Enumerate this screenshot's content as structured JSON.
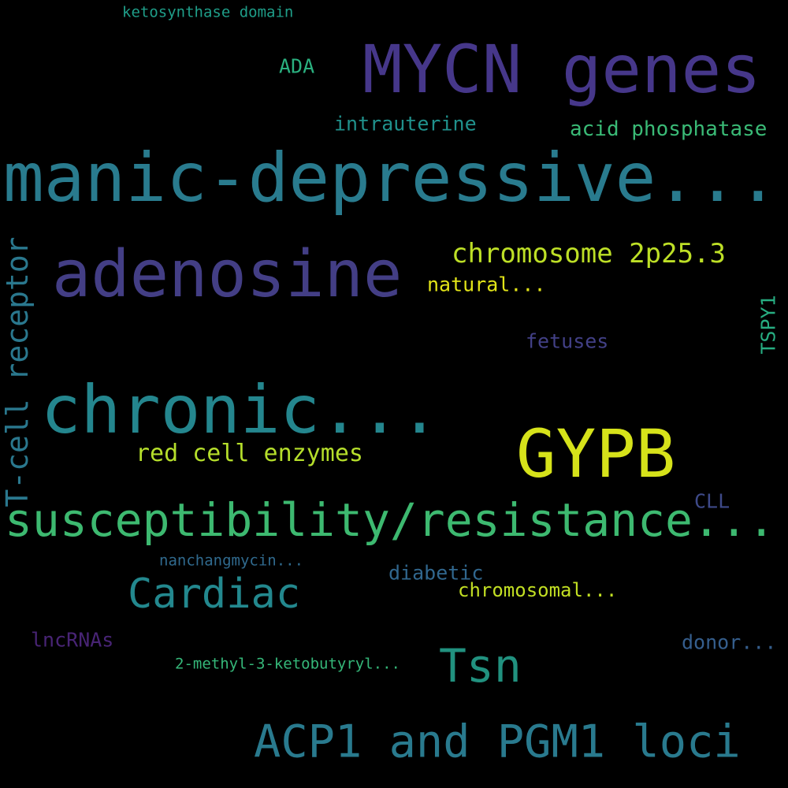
{
  "words": {
    "mycn_genes": {
      "text": "MYCN genes",
      "color": "#46378a"
    },
    "manic_depressive": {
      "text": "manic-depressive...",
      "color": "#297b8e"
    },
    "adenosine": {
      "text": "adenosine",
      "color": "#433e85"
    },
    "chronic": {
      "text": "chronic...",
      "color": "#24868e"
    },
    "gypb": {
      "text": "GYPB",
      "color": "#d6e21a"
    },
    "susceptibility": {
      "text": "susceptibility/resistance...",
      "color": "#3db970"
    },
    "acp1_pgm1": {
      "text": "ACP1 and PGM1 loci",
      "color": "#297a8e"
    },
    "tsn": {
      "text": "Tsn",
      "color": "#21917f"
    },
    "cardiac": {
      "text": "Cardiac",
      "color": "#23888e"
    },
    "t_cell_receptor": {
      "text": "T-cell receptor",
      "color": "#2a788e"
    },
    "chromosome_2p25": {
      "text": "chromosome 2p25.3",
      "color": "#bddf26"
    },
    "red_cell_enzymes": {
      "text": "red cell enzymes",
      "color": "#b5de2b"
    },
    "acid_phosphatase": {
      "text": "acid phosphatase",
      "color": "#3aba76"
    },
    "intrauterine": {
      "text": "intrauterine",
      "color": "#20918c"
    },
    "ada": {
      "text": "ADA",
      "color": "#2ab07f"
    },
    "natural": {
      "text": "natural...",
      "color": "#e2e418"
    },
    "fetuses": {
      "text": "fetuses",
      "color": "#424086"
    },
    "tspy1": {
      "text": "TSPY1",
      "color": "#27ad81"
    },
    "cll": {
      "text": "CLL",
      "color": "#3e4a89"
    },
    "diabetic": {
      "text": "diabetic",
      "color": "#31678e"
    },
    "chromosomal": {
      "text": "chromosomal...",
      "color": "#c2df23"
    },
    "nanchangmycin": {
      "text": "nanchangmycin...",
      "color": "#306a8e"
    },
    "lncrnas": {
      "text": "lncRNAs",
      "color": "#482475"
    },
    "donor": {
      "text": "donor...",
      "color": "#355e8d"
    },
    "methyl_ketobutyryl": {
      "text": "2-methyl-3-ketobutyryl...",
      "color": "#35b779"
    },
    "ketosynthase_domain": {
      "text": "ketosynthase domain",
      "color": "#1f9e89"
    }
  }
}
